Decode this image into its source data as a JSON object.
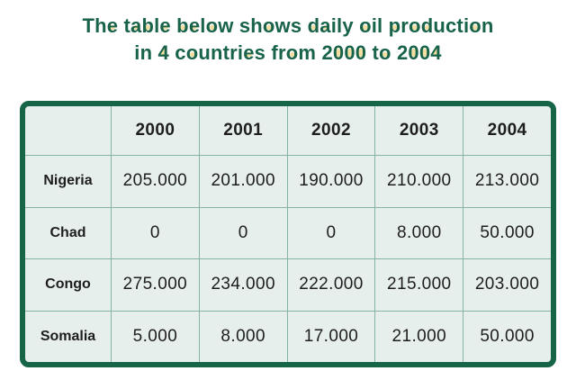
{
  "title": {
    "line1": "The table below shows daily oil production",
    "line2": "in 4 countries from 2000 to 2004"
  },
  "table": {
    "corner_cell": "",
    "columns": [
      "2000",
      "2001",
      "2002",
      "2003",
      "2004"
    ],
    "rows": [
      {
        "label": "Nigeria",
        "values": [
          "205.000",
          "201.000",
          "190.000",
          "210.000",
          "213.000"
        ]
      },
      {
        "label": "Chad",
        "values": [
          "0",
          "0",
          "0",
          "8.000",
          "50.000"
        ]
      },
      {
        "label": "Congo",
        "values": [
          "275.000",
          "234.000",
          "222.000",
          "215.000",
          "203.000"
        ]
      },
      {
        "label": "Somalia",
        "values": [
          "5.000",
          "8.000",
          "17.000",
          "21.000",
          "50.000"
        ]
      }
    ]
  },
  "chart_data": {
    "type": "table",
    "title": "The table below shows daily oil production in 4 countries from 2000 to 2004",
    "categories": [
      "2000",
      "2001",
      "2002",
      "2003",
      "2004"
    ],
    "series": [
      {
        "name": "Nigeria",
        "values": [
          205000,
          201000,
          190000,
          210000,
          213000
        ]
      },
      {
        "name": "Chad",
        "values": [
          0,
          0,
          0,
          8000,
          50000
        ]
      },
      {
        "name": "Congo",
        "values": [
          275000,
          234000,
          222000,
          215000,
          203000
        ]
      },
      {
        "name": "Somalia",
        "values": [
          5000,
          8000,
          17000,
          21000,
          50000
        ]
      }
    ]
  },
  "colors": {
    "title_green": "#186349",
    "counter_cream": "#f4dfa2",
    "outer_border": "#156546",
    "table_bg": "#e6efeb",
    "cell_border": "#85b4a2",
    "text_dark": "#1e1e1e"
  }
}
